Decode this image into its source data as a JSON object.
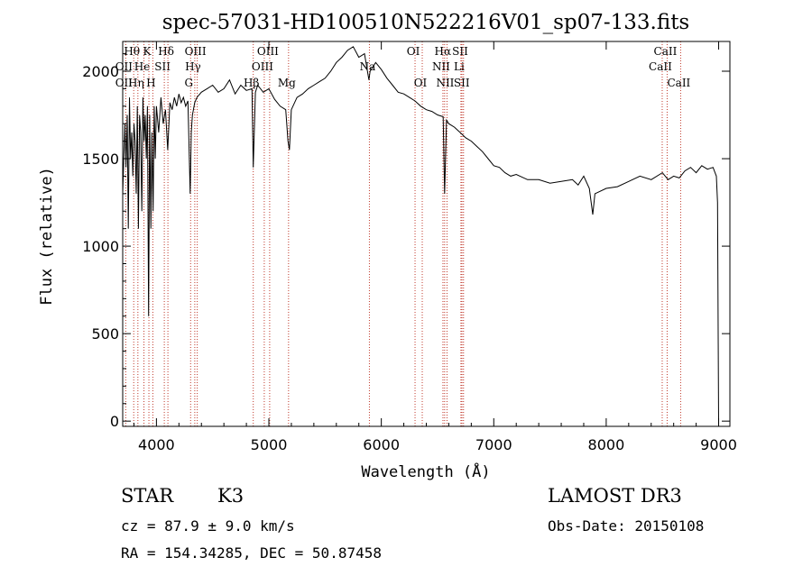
{
  "chart_data": {
    "type": "line",
    "title": "spec-57031-HD100510N522216V01_sp07-133.fits",
    "xlabel": "Wavelength (Å)",
    "ylabel": "Flux (relative)",
    "xlim": [
      3700,
      9100
    ],
    "ylim": [
      -30,
      2170
    ],
    "xticks": [
      4000,
      5000,
      6000,
      7000,
      8000,
      9000
    ],
    "yticks": [
      0,
      500,
      1000,
      1500,
      2000
    ],
    "grid": false,
    "series": [
      {
        "name": "spectrum",
        "x": [
          3700,
          3710,
          3720,
          3730,
          3740,
          3750,
          3760,
          3770,
          3780,
          3790,
          3800,
          3810,
          3820,
          3830,
          3840,
          3850,
          3860,
          3870,
          3880,
          3890,
          3900,
          3910,
          3920,
          3930,
          3940,
          3950,
          3960,
          3970,
          3980,
          3990,
          4000,
          4020,
          4040,
          4060,
          4080,
          4100,
          4120,
          4140,
          4160,
          4180,
          4200,
          4220,
          4240,
          4260,
          4280,
          4300,
          4310,
          4320,
          4340,
          4360,
          4400,
          4450,
          4500,
          4550,
          4600,
          4650,
          4700,
          4750,
          4800,
          4850,
          4861,
          4880,
          4900,
          4950,
          5000,
          5050,
          5100,
          5150,
          5170,
          5183,
          5200,
          5250,
          5300,
          5350,
          5400,
          5450,
          5500,
          5550,
          5600,
          5650,
          5700,
          5750,
          5800,
          5850,
          5890,
          5900,
          5950,
          6000,
          6050,
          6100,
          6150,
          6200,
          6250,
          6300,
          6350,
          6400,
          6450,
          6500,
          6550,
          6563,
          6580,
          6600,
          6650,
          6700,
          6750,
          6800,
          6850,
          6900,
          6950,
          7000,
          7050,
          7100,
          7150,
          7200,
          7300,
          7400,
          7500,
          7600,
          7700,
          7750,
          7800,
          7850,
          7880,
          7900,
          8000,
          8100,
          8200,
          8300,
          8400,
          8500,
          8550,
          8600,
          8650,
          8700,
          8750,
          8800,
          8850,
          8900,
          8950,
          8980,
          8990,
          9000
        ],
        "y": [
          1300,
          1500,
          1700,
          1450,
          1750,
          1100,
          1850,
          1500,
          1650,
          1400,
          1700,
          1600,
          1300,
          1800,
          1100,
          1750,
          1650,
          1200,
          1850,
          1600,
          1750,
          1500,
          1800,
          600,
          1750,
          1100,
          1650,
          1200,
          1800,
          1500,
          1800,
          1650,
          1850,
          1700,
          1780,
          1550,
          1820,
          1780,
          1850,
          1800,
          1870,
          1820,
          1850,
          1800,
          1830,
          1300,
          1650,
          1750,
          1820,
          1850,
          1880,
          1900,
          1920,
          1880,
          1900,
          1950,
          1870,
          1920,
          1890,
          1900,
          1450,
          1880,
          1920,
          1880,
          1900,
          1840,
          1800,
          1780,
          1600,
          1550,
          1780,
          1850,
          1870,
          1900,
          1920,
          1940,
          1960,
          2000,
          2050,
          2080,
          2120,
          2140,
          2080,
          2100,
          1950,
          2000,
          2050,
          2010,
          1960,
          1920,
          1880,
          1870,
          1850,
          1830,
          1800,
          1780,
          1770,
          1750,
          1740,
          1300,
          1720,
          1700,
          1680,
          1650,
          1620,
          1600,
          1570,
          1540,
          1500,
          1460,
          1450,
          1420,
          1400,
          1410,
          1380,
          1380,
          1360,
          1370,
          1380,
          1350,
          1400,
          1330,
          1180,
          1300,
          1330,
          1340,
          1370,
          1400,
          1380,
          1420,
          1380,
          1400,
          1390,
          1430,
          1450,
          1420,
          1460,
          1440,
          1450,
          1400,
          1250,
          -20
        ]
      }
    ],
    "line_markers": [
      {
        "wavelength": 3727,
        "rows": [
          "",
          "OII",
          "OII"
        ]
      },
      {
        "wavelength": 3798,
        "rows": [
          "Hθ",
          "",
          ""
        ]
      },
      {
        "wavelength": 3835,
        "rows": [
          "",
          "",
          "Hη"
        ]
      },
      {
        "wavelength": 3889,
        "rows": [
          "",
          "He",
          ""
        ]
      },
      {
        "wavelength": 3933,
        "rows": [
          "K",
          "",
          ""
        ]
      },
      {
        "wavelength": 3968,
        "rows": [
          "",
          "",
          "H"
        ]
      },
      {
        "wavelength": 4070,
        "rows": [
          "",
          "SII",
          ""
        ]
      },
      {
        "wavelength": 4102,
        "rows": [
          "Hδ",
          "",
          ""
        ]
      },
      {
        "wavelength": 4304,
        "rows": [
          "",
          "",
          "G"
        ]
      },
      {
        "wavelength": 4341,
        "rows": [
          "",
          "Hγ",
          ""
        ]
      },
      {
        "wavelength": 4363,
        "rows": [
          "OIII",
          "",
          ""
        ]
      },
      {
        "wavelength": 4861,
        "rows": [
          "",
          "",
          "Hβ"
        ]
      },
      {
        "wavelength": 4959,
        "rows": [
          "",
          "OIII",
          ""
        ]
      },
      {
        "wavelength": 5007,
        "rows": [
          "OIII",
          "",
          ""
        ]
      },
      {
        "wavelength": 5175,
        "rows": [
          "",
          "",
          "Mg"
        ]
      },
      {
        "wavelength": 5894,
        "rows": [
          "",
          "Na",
          ""
        ]
      },
      {
        "wavelength": 6300,
        "rows": [
          "OI",
          "",
          ""
        ]
      },
      {
        "wavelength": 6364,
        "rows": [
          "",
          "",
          "OI"
        ]
      },
      {
        "wavelength": 6548,
        "rows": [
          "",
          "NII",
          ""
        ]
      },
      {
        "wavelength": 6563,
        "rows": [
          "Hα",
          "",
          ""
        ]
      },
      {
        "wavelength": 6584,
        "rows": [
          "",
          "",
          "NII"
        ]
      },
      {
        "wavelength": 6708,
        "rows": [
          "",
          "Li",
          ""
        ]
      },
      {
        "wavelength": 6717,
        "rows": [
          "SII",
          "",
          ""
        ]
      },
      {
        "wavelength": 6731,
        "rows": [
          "",
          "",
          "SII"
        ]
      },
      {
        "wavelength": 8498,
        "rows": [
          "",
          "CaII",
          ""
        ]
      },
      {
        "wavelength": 8542,
        "rows": [
          "CaII",
          "",
          ""
        ]
      },
      {
        "wavelength": 8662,
        "rows": [
          "",
          "",
          "CaII"
        ]
      }
    ]
  },
  "info": {
    "object_class": "STAR",
    "subclass": "K3",
    "survey": "LAMOST DR3",
    "redshift": "cz = 87.9 ± 9.0 km/s",
    "obs_date": "Obs-Date: 20150108",
    "coords": "RA = 154.34285, DEC =  50.87458"
  },
  "colors": {
    "marker_line": "#c0392b",
    "spectrum": "#000000"
  }
}
